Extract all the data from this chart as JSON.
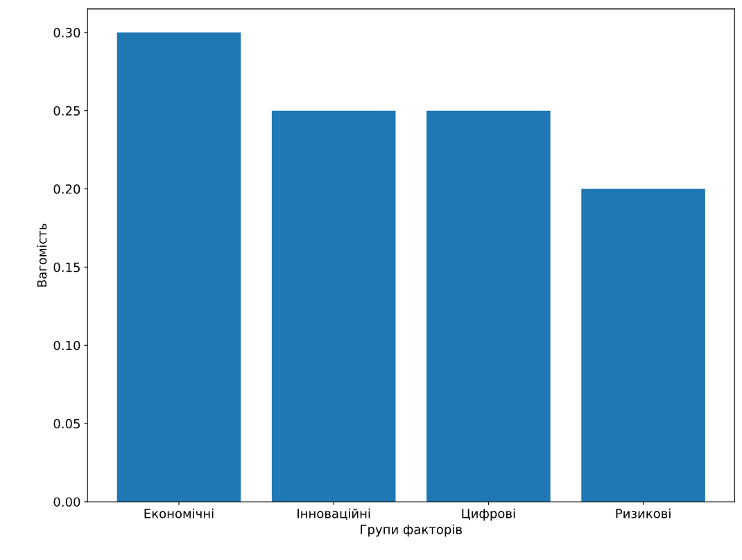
{
  "chart_data": {
    "type": "bar",
    "xlabel": "Групи факторів",
    "ylabel": "Вагомість",
    "categories": [
      "Економічні",
      "Інноваційні",
      "Цифрові",
      "Ризикові"
    ],
    "values": [
      0.3,
      0.25,
      0.25,
      0.2
    ],
    "color": "#1f77b4",
    "ylim": [
      0,
      0.315
    ],
    "yticks": [
      {
        "value": 0,
        "label": "0.00"
      },
      {
        "value": 0.05,
        "label": "0.05"
      },
      {
        "value": 0.1,
        "label": "0.10"
      },
      {
        "value": 0.15,
        "label": "0.15"
      },
      {
        "value": 0.2,
        "label": "0.20"
      },
      {
        "value": 0.25,
        "label": "0.25"
      },
      {
        "value": 0.3,
        "label": "0.30"
      }
    ],
    "grid": false
  }
}
